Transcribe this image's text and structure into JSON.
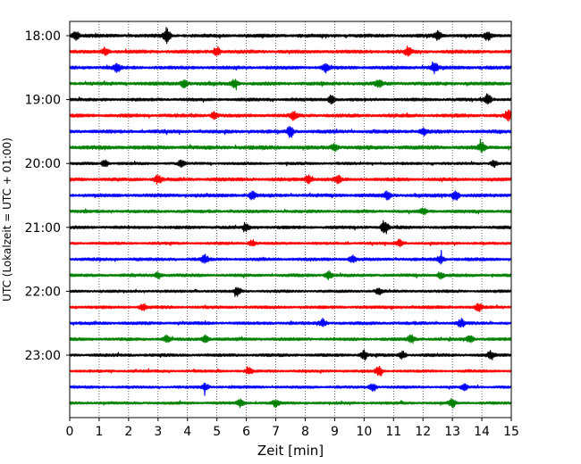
{
  "chart_data": {
    "type": "line",
    "subtype": "helicorder",
    "title": "",
    "xlabel": "Zeit  [min]",
    "ylabel": "UTC (Lokalzeit = UTC + 01:00)",
    "xlim": [
      0,
      15
    ],
    "x_ticks": [
      0,
      1,
      2,
      3,
      4,
      5,
      6,
      7,
      8,
      9,
      10,
      11,
      12,
      13,
      14,
      15
    ],
    "x_tick_labels": [
      "0",
      "1",
      "2",
      "3",
      "4",
      "5",
      "6",
      "7",
      "8",
      "9",
      "10",
      "11",
      "12",
      "13",
      "14",
      "15"
    ],
    "y_tick_labels": [
      "18:00",
      "19:00",
      "20:00",
      "21:00",
      "22:00",
      "23:00"
    ],
    "grid": "vertical dotted lines at each minute",
    "trace_colors": [
      "#000000",
      "#ff0000",
      "#0000ff",
      "#008000"
    ],
    "traces": [
      {
        "start": "18:00",
        "color_index": 0,
        "amplitude": 1.0,
        "events": [
          {
            "x": 0.2,
            "amp": 2.2
          },
          {
            "x": 3.3,
            "amp": 3.6
          },
          {
            "x": 12.5,
            "amp": 2.4
          },
          {
            "x": 14.2,
            "amp": 2.0
          }
        ]
      },
      {
        "start": "18:15",
        "color_index": 1,
        "amplitude": 1.0,
        "events": [
          {
            "x": 1.2,
            "amp": 1.8
          },
          {
            "x": 5.0,
            "amp": 2.2
          },
          {
            "x": 11.5,
            "amp": 2.2
          }
        ]
      },
      {
        "start": "18:30",
        "color_index": 2,
        "amplitude": 1.0,
        "events": [
          {
            "x": 1.6,
            "amp": 2.0
          },
          {
            "x": 8.7,
            "amp": 2.2
          },
          {
            "x": 12.4,
            "amp": 2.0
          }
        ]
      },
      {
        "start": "18:45",
        "color_index": 3,
        "amplitude": 1.0,
        "events": [
          {
            "x": 3.9,
            "amp": 2.2
          },
          {
            "x": 5.6,
            "amp": 1.8
          },
          {
            "x": 10.5,
            "amp": 2.0
          }
        ]
      },
      {
        "start": "19:00",
        "color_index": 0,
        "amplitude": 0.9,
        "events": [
          {
            "x": 8.9,
            "amp": 2.2
          },
          {
            "x": 14.2,
            "amp": 2.8
          }
        ]
      },
      {
        "start": "19:15",
        "color_index": 1,
        "amplitude": 1.0,
        "events": [
          {
            "x": 4.9,
            "amp": 1.6
          },
          {
            "x": 7.6,
            "amp": 1.8
          },
          {
            "x": 14.9,
            "amp": 2.6
          }
        ]
      },
      {
        "start": "19:30",
        "color_index": 2,
        "amplitude": 1.0,
        "events": [
          {
            "x": 7.5,
            "amp": 2.8
          },
          {
            "x": 12.0,
            "amp": 1.8
          }
        ]
      },
      {
        "start": "19:45",
        "color_index": 3,
        "amplitude": 1.1,
        "events": [
          {
            "x": 9.0,
            "amp": 1.6
          },
          {
            "x": 14.0,
            "amp": 2.0
          }
        ]
      },
      {
        "start": "20:00",
        "color_index": 0,
        "amplitude": 0.8,
        "events": [
          {
            "x": 1.2,
            "amp": 1.6
          },
          {
            "x": 3.8,
            "amp": 1.6
          },
          {
            "x": 14.4,
            "amp": 1.8
          }
        ]
      },
      {
        "start": "20:15",
        "color_index": 1,
        "amplitude": 1.0,
        "events": [
          {
            "x": 3.0,
            "amp": 2.0
          },
          {
            "x": 8.1,
            "amp": 2.0
          },
          {
            "x": 9.1,
            "amp": 1.8
          }
        ]
      },
      {
        "start": "20:30",
        "color_index": 2,
        "amplitude": 1.0,
        "events": [
          {
            "x": 6.2,
            "amp": 1.6
          },
          {
            "x": 10.8,
            "amp": 1.8
          },
          {
            "x": 13.1,
            "amp": 2.8
          }
        ]
      },
      {
        "start": "20:45",
        "color_index": 3,
        "amplitude": 0.9,
        "events": [
          {
            "x": 12.0,
            "amp": 1.4
          }
        ]
      },
      {
        "start": "21:00",
        "color_index": 0,
        "amplitude": 0.9,
        "events": [
          {
            "x": 6.0,
            "amp": 1.6
          },
          {
            "x": 10.7,
            "amp": 3.4
          }
        ]
      },
      {
        "start": "21:15",
        "color_index": 1,
        "amplitude": 0.8,
        "events": [
          {
            "x": 6.2,
            "amp": 1.6
          },
          {
            "x": 11.2,
            "amp": 1.6
          }
        ]
      },
      {
        "start": "21:30",
        "color_index": 2,
        "amplitude": 0.9,
        "events": [
          {
            "x": 4.6,
            "amp": 2.0
          },
          {
            "x": 9.6,
            "amp": 1.6
          },
          {
            "x": 12.6,
            "amp": 2.0
          }
        ]
      },
      {
        "start": "21:45",
        "color_index": 3,
        "amplitude": 0.9,
        "events": [
          {
            "x": 3.0,
            "amp": 1.6
          },
          {
            "x": 8.8,
            "amp": 1.8
          },
          {
            "x": 12.6,
            "amp": 1.6
          }
        ]
      },
      {
        "start": "22:00",
        "color_index": 0,
        "amplitude": 0.8,
        "events": [
          {
            "x": 5.7,
            "amp": 2.0
          },
          {
            "x": 10.5,
            "amp": 1.6
          }
        ]
      },
      {
        "start": "22:15",
        "color_index": 1,
        "amplitude": 0.9,
        "events": [
          {
            "x": 2.5,
            "amp": 1.6
          },
          {
            "x": 13.9,
            "amp": 1.8
          }
        ]
      },
      {
        "start": "22:30",
        "color_index": 2,
        "amplitude": 0.9,
        "events": [
          {
            "x": 13.3,
            "amp": 2.0
          },
          {
            "x": 8.6,
            "amp": 1.6
          }
        ]
      },
      {
        "start": "22:45",
        "color_index": 3,
        "amplitude": 0.9,
        "events": [
          {
            "x": 3.3,
            "amp": 1.8
          },
          {
            "x": 4.6,
            "amp": 1.8
          },
          {
            "x": 11.6,
            "amp": 1.8
          },
          {
            "x": 13.6,
            "amp": 1.6
          }
        ]
      },
      {
        "start": "23:00",
        "color_index": 0,
        "amplitude": 0.9,
        "events": [
          {
            "x": 10.0,
            "amp": 2.2
          },
          {
            "x": 11.3,
            "amp": 1.8
          },
          {
            "x": 14.3,
            "amp": 1.8
          }
        ]
      },
      {
        "start": "23:15",
        "color_index": 1,
        "amplitude": 0.8,
        "events": [
          {
            "x": 6.1,
            "amp": 1.6
          },
          {
            "x": 10.5,
            "amp": 2.0
          }
        ]
      },
      {
        "start": "23:30",
        "color_index": 2,
        "amplitude": 0.8,
        "events": [
          {
            "x": 4.6,
            "amp": 1.8
          },
          {
            "x": 10.3,
            "amp": 1.6
          },
          {
            "x": 13.4,
            "amp": 1.6
          }
        ]
      },
      {
        "start": "23:45",
        "color_index": 3,
        "amplitude": 0.8,
        "events": [
          {
            "x": 5.8,
            "amp": 2.0
          },
          {
            "x": 7.0,
            "amp": 1.6
          },
          {
            "x": 13.0,
            "amp": 2.0
          }
        ]
      }
    ]
  }
}
